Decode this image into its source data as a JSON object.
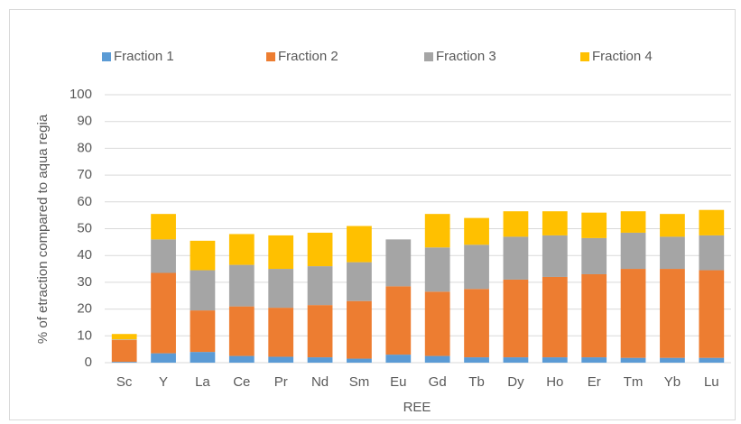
{
  "chart_data": {
    "type": "stacked_bar",
    "x_label": "REE",
    "y_label": "% of etraction compared to aqua regia",
    "categories": [
      "Sc",
      "Y",
      "La",
      "Ce",
      "Pr",
      "Nd",
      "Sm",
      "Eu",
      "Gd",
      "Tb",
      "Dy",
      "Ho",
      "Er",
      "Tm",
      "Yb",
      "Lu"
    ],
    "series": [
      {
        "name": "Fraction 1",
        "color": "#5b9bd5",
        "values": [
          0.3,
          3.5,
          4,
          2.5,
          2.2,
          2,
          1.5,
          3,
          2.5,
          2,
          2,
          2,
          2,
          1.8,
          1.8,
          1.8
        ]
      },
      {
        "name": "Fraction 2",
        "color": "#ed7d31",
        "values": [
          8.2,
          30,
          15.5,
          18.5,
          18.3,
          19.5,
          21.5,
          25.5,
          24,
          25.5,
          29,
          30,
          31,
          33.2,
          33.2,
          32.7
        ]
      },
      {
        "name": "Fraction 3",
        "color": "#a5a5a5",
        "values": [
          0.2,
          12.5,
          15,
          15.5,
          14.5,
          14.5,
          14.5,
          17.5,
          16.5,
          16.5,
          16,
          15.5,
          13.5,
          13.5,
          12,
          13
        ]
      },
      {
        "name": "Fraction 4",
        "color": "#ffc000",
        "values": [
          2,
          9.5,
          11,
          11.5,
          12.5,
          12.5,
          13.5,
          0,
          12.5,
          10,
          9.5,
          9,
          9.5,
          8,
          8.5,
          9.5
        ]
      }
    ],
    "ylim": [
      0,
      100
    ],
    "yticks": [
      0,
      10,
      20,
      30,
      40,
      50,
      60,
      70,
      80,
      90,
      100
    ],
    "grid": true,
    "legend": "top"
  }
}
